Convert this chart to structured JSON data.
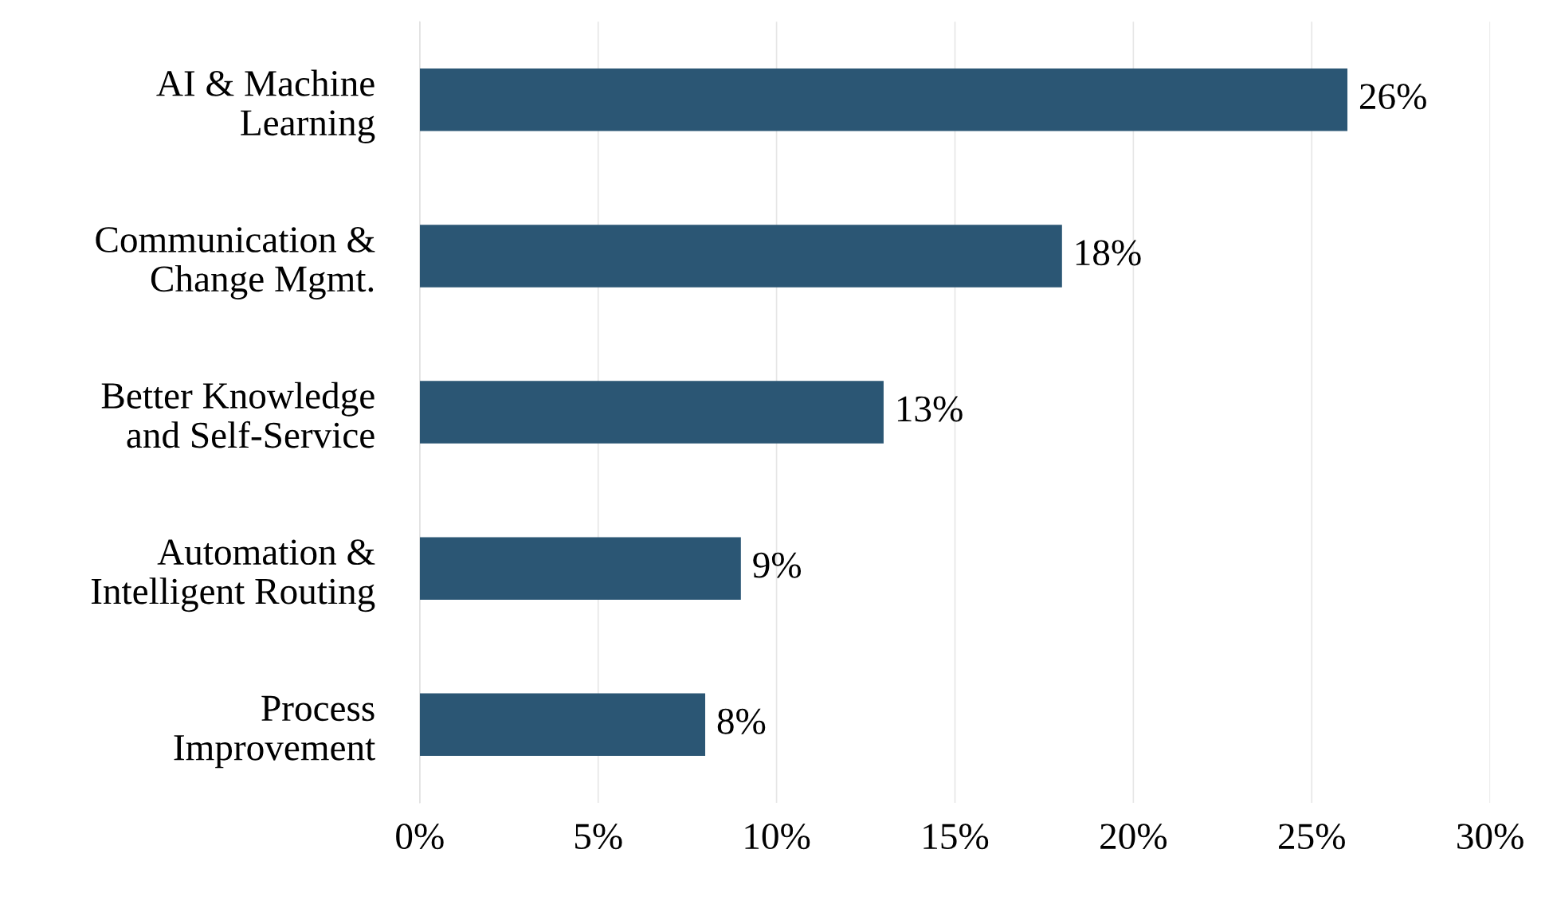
{
  "chart_data": {
    "type": "bar",
    "orientation": "horizontal",
    "categories": [
      "AI & Machine\nLearning",
      "Communication &\nChange Mgmt.",
      "Better Knowledge\nand Self-Service",
      "Automation &\nIntelligent Routing",
      "Process\nImprovement"
    ],
    "values": [
      26,
      18,
      13,
      9,
      8
    ],
    "value_labels": [
      "26%",
      "18%",
      "13%",
      "9%",
      "8%"
    ],
    "color": "#2b5674",
    "xlim": [
      0,
      30
    ],
    "xticks": [
      {
        "value": 0,
        "label": "0%"
      },
      {
        "value": 5,
        "label": "5%"
      },
      {
        "value": 10,
        "label": "10%"
      },
      {
        "value": 15,
        "label": "15%"
      },
      {
        "value": 20,
        "label": "20%"
      },
      {
        "value": 25,
        "label": "25%"
      },
      {
        "value": 30,
        "label": "30%"
      }
    ],
    "grid": "x",
    "legend": false
  }
}
